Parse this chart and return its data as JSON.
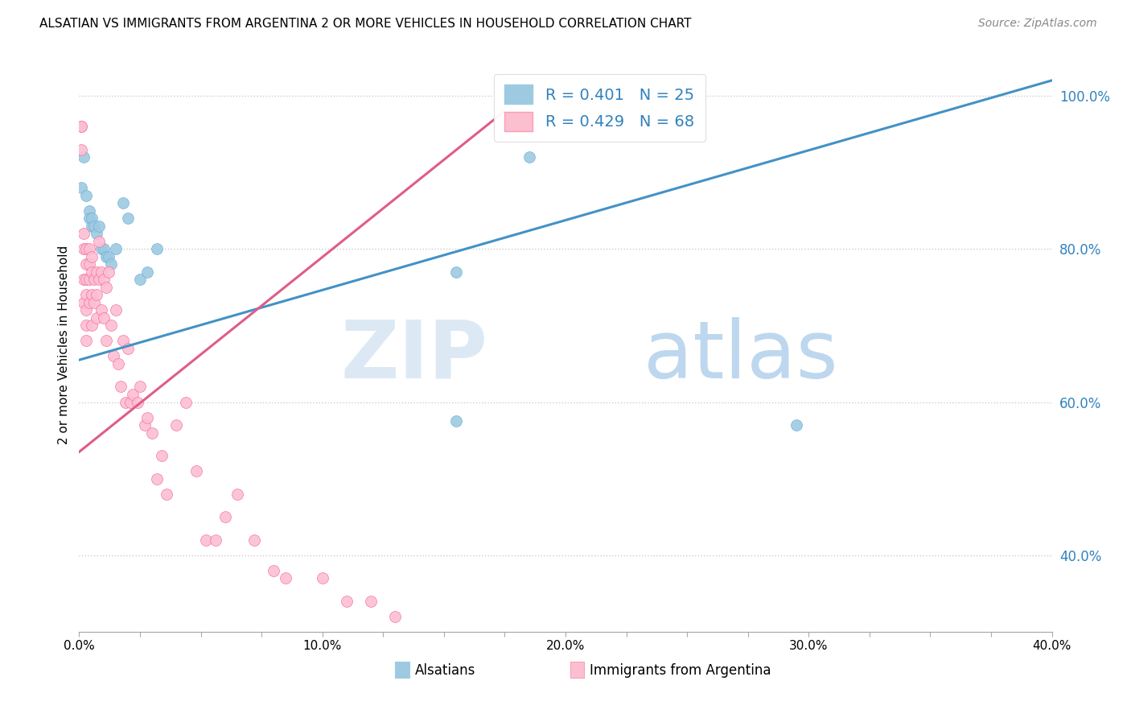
{
  "title": "ALSATIAN VS IMMIGRANTS FROM ARGENTINA 2 OR MORE VEHICLES IN HOUSEHOLD CORRELATION CHART",
  "source": "Source: ZipAtlas.com",
  "ylabel": "2 or more Vehicles in Household",
  "x_min": 0.0,
  "x_max": 0.4,
  "y_min": 0.3,
  "y_max": 1.05,
  "x_tick_labels": [
    "0.0%",
    "",
    "",
    "",
    "10.0%",
    "",
    "",
    "",
    "20.0%",
    "",
    "",
    "",
    "30.0%",
    "",
    "",
    "",
    "40.0%"
  ],
  "x_tick_values": [
    0.0,
    0.025,
    0.05,
    0.075,
    0.1,
    0.125,
    0.15,
    0.175,
    0.2,
    0.225,
    0.25,
    0.275,
    0.3,
    0.325,
    0.35,
    0.375,
    0.4
  ],
  "y_tick_labels_right": [
    "100.0%",
    "80.0%",
    "60.0%",
    "40.0%"
  ],
  "y_tick_values": [
    1.0,
    0.8,
    0.6,
    0.4
  ],
  "legend_text_color": "#3182bd",
  "legend_label1": "Alsatians",
  "legend_label2": "Immigrants from Argentina",
  "color_blue": "#9ecae1",
  "color_pink": "#fcbfd2",
  "color_blue_line": "#4292c6",
  "color_pink_line": "#e05c8a",
  "blue_line_x0": 0.0,
  "blue_line_y0": 0.655,
  "blue_line_x1": 0.4,
  "blue_line_y1": 1.02,
  "pink_line_x0": 0.0,
  "pink_line_y0": 0.535,
  "pink_line_x1": 0.175,
  "pink_line_y1": 0.98,
  "alsatian_x": [
    0.001,
    0.002,
    0.003,
    0.004,
    0.004,
    0.005,
    0.005,
    0.006,
    0.007,
    0.008,
    0.009,
    0.01,
    0.011,
    0.012,
    0.013,
    0.015,
    0.018,
    0.02,
    0.025,
    0.028,
    0.032,
    0.155,
    0.185,
    0.295,
    0.155
  ],
  "alsatian_y": [
    0.88,
    0.92,
    0.87,
    0.85,
    0.84,
    0.83,
    0.84,
    0.83,
    0.82,
    0.83,
    0.8,
    0.8,
    0.79,
    0.79,
    0.78,
    0.8,
    0.86,
    0.84,
    0.76,
    0.77,
    0.8,
    0.575,
    0.92,
    0.57,
    0.77
  ],
  "argentina_x": [
    0.001,
    0.001,
    0.001,
    0.002,
    0.002,
    0.002,
    0.002,
    0.003,
    0.003,
    0.003,
    0.003,
    0.003,
    0.003,
    0.003,
    0.004,
    0.004,
    0.004,
    0.004,
    0.005,
    0.005,
    0.005,
    0.005,
    0.006,
    0.006,
    0.007,
    0.007,
    0.007,
    0.008,
    0.008,
    0.009,
    0.009,
    0.01,
    0.01,
    0.011,
    0.011,
    0.012,
    0.013,
    0.014,
    0.015,
    0.016,
    0.017,
    0.018,
    0.019,
    0.02,
    0.021,
    0.022,
    0.024,
    0.025,
    0.027,
    0.028,
    0.03,
    0.032,
    0.034,
    0.036,
    0.04,
    0.044,
    0.048,
    0.052,
    0.056,
    0.06,
    0.065,
    0.072,
    0.08,
    0.085,
    0.1,
    0.11,
    0.12,
    0.13
  ],
  "argentina_y": [
    0.96,
    0.96,
    0.93,
    0.82,
    0.8,
    0.76,
    0.73,
    0.8,
    0.78,
    0.76,
    0.74,
    0.72,
    0.7,
    0.68,
    0.8,
    0.78,
    0.76,
    0.73,
    0.79,
    0.77,
    0.74,
    0.7,
    0.76,
    0.73,
    0.77,
    0.74,
    0.71,
    0.81,
    0.76,
    0.77,
    0.72,
    0.76,
    0.71,
    0.75,
    0.68,
    0.77,
    0.7,
    0.66,
    0.72,
    0.65,
    0.62,
    0.68,
    0.6,
    0.67,
    0.6,
    0.61,
    0.6,
    0.62,
    0.57,
    0.58,
    0.56,
    0.5,
    0.53,
    0.48,
    0.57,
    0.6,
    0.51,
    0.42,
    0.42,
    0.45,
    0.48,
    0.42,
    0.38,
    0.37,
    0.37,
    0.34,
    0.34,
    0.32
  ]
}
